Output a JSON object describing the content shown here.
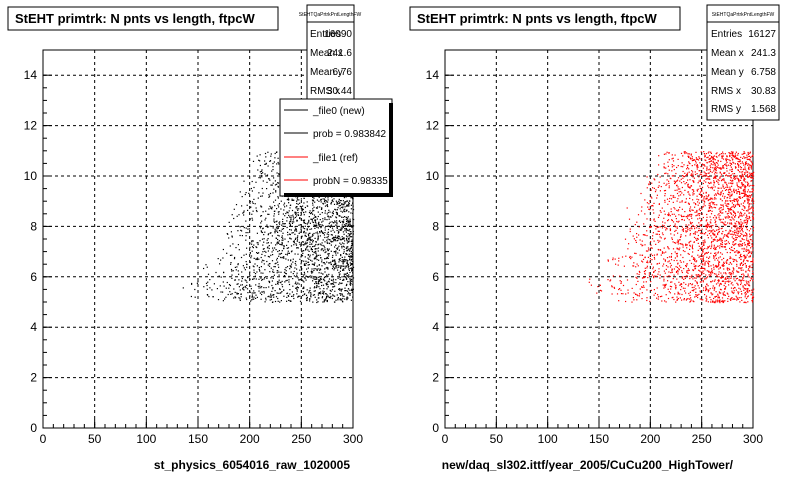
{
  "chart_data": [
    {
      "type": "scatter",
      "title": "StEHT primtrk: N pnts vs length, ftpcW",
      "xlabel": "st_physics_6054016_raw_1020005",
      "ylabel": "",
      "xlim": [
        0,
        300
      ],
      "ylim": [
        0,
        15
      ],
      "x_ticks": [
        "0",
        "50",
        "100",
        "150",
        "200",
        "250",
        "300"
      ],
      "y_ticks": [
        "0",
        "2",
        "4",
        "6",
        "8",
        "10",
        "12",
        "14"
      ],
      "grid": true,
      "color": "#000000",
      "stats": {
        "name": "StEHTQaPrtrkPntLengthFW",
        "entries_label": "Entries",
        "entries": "16090",
        "meanx_label": "Mean x",
        "meanx": "241.6",
        "meany_label": "Mean y",
        "meany": "6.76",
        "rmsx_label": "RMS x",
        "rmsx": "30.44"
      },
      "legend": {
        "placement": "top-right",
        "entries": [
          {
            "label": "_file0 (new)",
            "color": "#000000"
          },
          {
            "label": "prob = 0.983842",
            "color": "#000000"
          },
          {
            "label": "_file1 (ref)",
            "color": "#ff0000"
          },
          {
            "label": "probN = 0.98335",
            "color": "#ff0000"
          }
        ]
      },
      "density_bands": [
        {
          "y": [
            5,
            6
          ],
          "x": [
            132,
            300
          ]
        },
        {
          "y": [
            6,
            7
          ],
          "x": [
            150,
            300
          ]
        },
        {
          "y": [
            7,
            8
          ],
          "x": [
            165,
            300
          ]
        },
        {
          "y": [
            8,
            9
          ],
          "x": [
            175,
            300
          ]
        },
        {
          "y": [
            9,
            10
          ],
          "x": [
            185,
            300
          ]
        },
        {
          "y": [
            10,
            11
          ],
          "x": [
            200,
            300
          ]
        }
      ]
    },
    {
      "type": "scatter",
      "title": "StEHT primtrk: N pnts vs length, ftpcW",
      "xlabel": "new/daq_sl302.ittf/year_2005/CuCu200_HighTower/",
      "ylabel": "",
      "xlim": [
        0,
        300
      ],
      "ylim": [
        0,
        15
      ],
      "x_ticks": [
        "0",
        "50",
        "100",
        "150",
        "200",
        "250",
        "300"
      ],
      "y_ticks": [
        "0",
        "2",
        "4",
        "6",
        "8",
        "10",
        "12",
        "14"
      ],
      "grid": true,
      "color": "#ff0000",
      "stats": {
        "name": "StEHTQaPrtrkPntLengthFW",
        "entries_label": "Entries",
        "entries": "16127",
        "meanx_label": "Mean x",
        "meanx": "241.3",
        "meany_label": "Mean y",
        "meany": "6.758",
        "rmsx_label": "RMS x",
        "rmsx": "30.83",
        "rmsy_label": "RMS y",
        "rmsy": "1.568"
      },
      "density_bands": [
        {
          "y": [
            5,
            6
          ],
          "x": [
            130,
            300
          ]
        },
        {
          "y": [
            6,
            7
          ],
          "x": [
            150,
            300
          ]
        },
        {
          "y": [
            7,
            8
          ],
          "x": [
            165,
            300
          ]
        },
        {
          "y": [
            8,
            9
          ],
          "x": [
            175,
            300
          ]
        },
        {
          "y": [
            9,
            10
          ],
          "x": [
            185,
            300
          ]
        },
        {
          "y": [
            10,
            11
          ],
          "x": [
            200,
            300
          ]
        }
      ]
    }
  ]
}
